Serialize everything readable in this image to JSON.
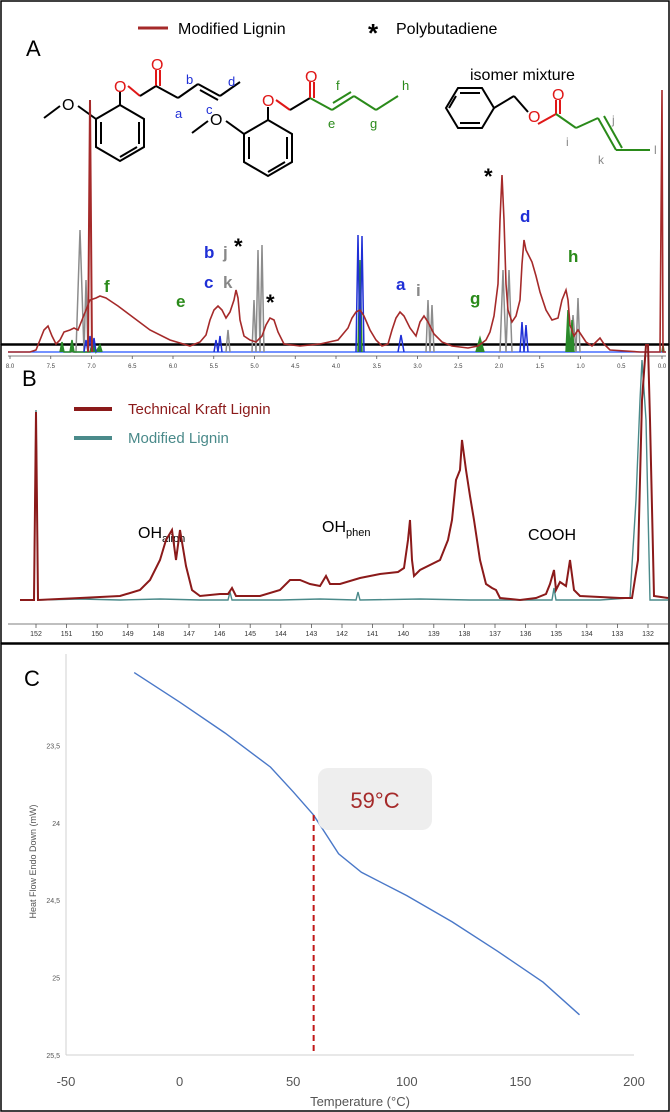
{
  "colors": {
    "modified_lignin_nmr": "#a52a2a",
    "polybutadiene_blue": "#1f2fd6",
    "gray_peaks": "#8c8c8c",
    "green_peaks": "#2a8a2a",
    "kraft": "#8b1a1a",
    "modified_p31": "#4a8a8a",
    "dsc_line": "#4a78c8",
    "tg_dash": "#c01818",
    "red_atom": "#e01818",
    "label_green": "#2a8a1a",
    "label_blue": "#1f2fd6",
    "label_gray": "#888888"
  },
  "panelA": {
    "letter": "A",
    "legend": {
      "line_label": "Modified Lignin",
      "star": "*",
      "star_label": "Polybutadiene"
    },
    "isomer_text": "isomer mixture",
    "structure_labels": {
      "a": "a",
      "b": "b",
      "c": "c",
      "d": "d",
      "e": "e",
      "f": "f",
      "g": "g",
      "h": "h",
      "i": "i",
      "j": "j",
      "k": "k",
      "l": "l",
      "O": "O"
    },
    "peak_labels": [
      "f",
      "e",
      "b",
      "j",
      "*",
      "c",
      "k",
      "*",
      "a",
      "i",
      "g",
      "*",
      "d",
      "h"
    ],
    "x_ticks": [
      "8.0",
      "7.5",
      "7.0",
      "6.5",
      "6.0",
      "5.5",
      "5.0",
      "4.5",
      "4.0",
      "3.5",
      "3.0",
      "2.5",
      "2.0",
      "1.5",
      "1.0",
      "0.5",
      "0.0"
    ]
  },
  "panelB": {
    "letter": "B",
    "legend": [
      "Technical Kraft Lignin",
      "Modified Lignin"
    ],
    "annotations": {
      "aliph_main": "OH",
      "aliph_sub": "aliph",
      "phen_main": "OH",
      "phen_sub": "phen",
      "cooh": "COOH"
    },
    "x_ticks": [
      "152",
      "151",
      "150",
      "149",
      "148",
      "147",
      "146",
      "145",
      "144",
      "143",
      "142",
      "141",
      "140",
      "139",
      "138",
      "137",
      "136",
      "135",
      "134",
      "133",
      "132"
    ]
  },
  "chart_data": [
    {
      "type": "line",
      "panel": "C",
      "xlabel": "Temperature (°C)",
      "ylabel": "Heat Flow Endo Down (mW)",
      "x_ticks": [
        -50,
        0,
        50,
        100,
        150,
        200
      ],
      "y_ticks": [
        "23,5",
        "24",
        "24,5",
        "25",
        "25,5"
      ],
      "xlim": [
        -50,
        200
      ],
      "ylim": [
        25.5,
        23.0
      ],
      "y_inverted": true,
      "annotation": "59°C",
      "tg": 59,
      "series": [
        {
          "x": [
            -20,
            0,
            20,
            40,
            50,
            59,
            70,
            80,
            100,
            120,
            140,
            160,
            176
          ],
          "y": [
            23.03,
            23.22,
            23.42,
            23.64,
            23.8,
            23.95,
            24.2,
            24.32,
            24.47,
            24.64,
            24.83,
            25.03,
            25.24
          ]
        }
      ]
    }
  ]
}
